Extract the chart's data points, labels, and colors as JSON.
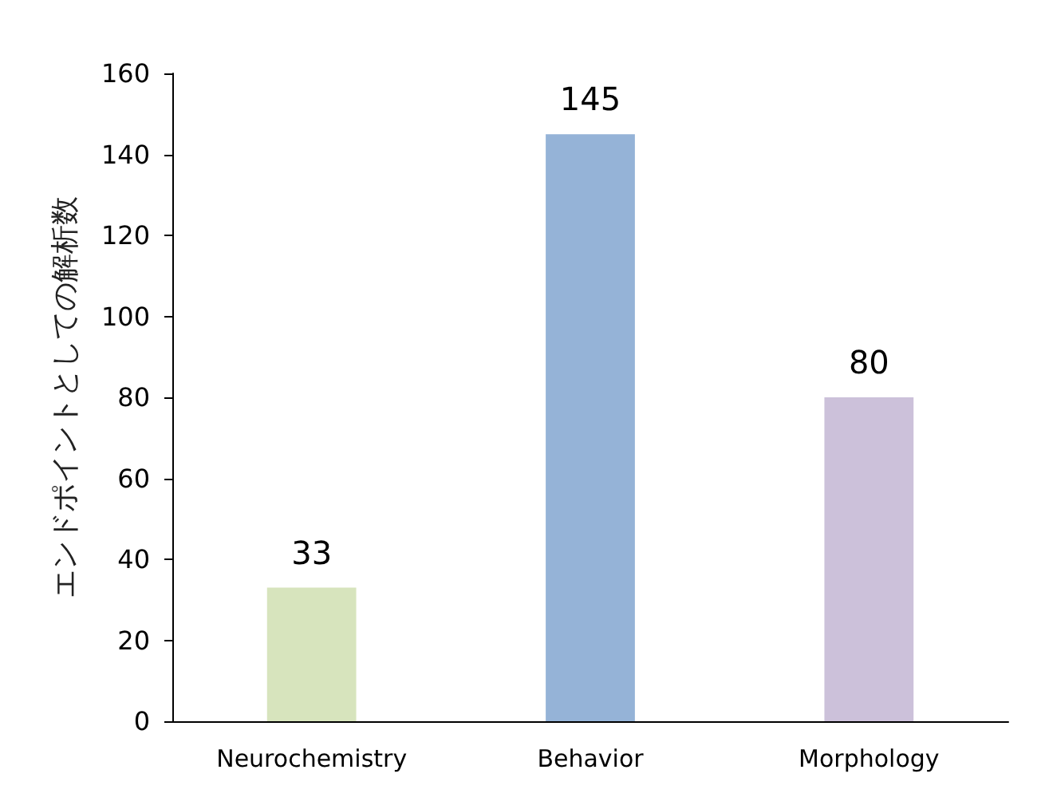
{
  "chart_data": {
    "type": "bar",
    "ylabel": "エンドポイントとしての解析数",
    "categories": [
      "Neurochemistry",
      "Behavior",
      "Morphology"
    ],
    "values": [
      33,
      145,
      80
    ],
    "colors": [
      "#d7e4bd",
      "#95b3d7",
      "#ccc1da"
    ],
    "ylim": [
      0,
      160
    ],
    "yticks": [
      0,
      20,
      40,
      60,
      80,
      100,
      120,
      140,
      160
    ],
    "data_labels": true,
    "grid": false
  }
}
